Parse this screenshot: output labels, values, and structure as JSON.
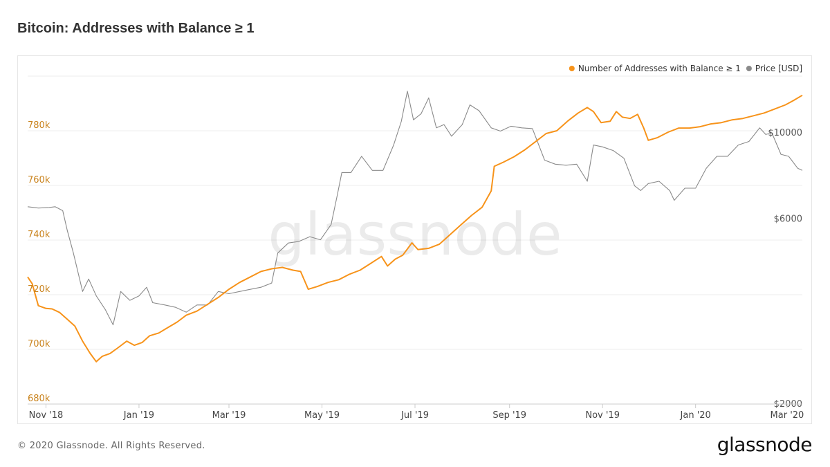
{
  "title": "Bitcoin: Addresses with Balance ≥ 1",
  "footer": {
    "copyright": "© 2020 Glassnode. All Rights Reserved.",
    "logo": "glassnode"
  },
  "watermark": "glassnode",
  "chart_data": {
    "type": "line",
    "title": "Bitcoin: Addresses with Balance ≥ 1",
    "legend_position": "top-right",
    "grid": true,
    "x_ticks": [
      "Nov '18",
      "Jan '19",
      "Mar '19",
      "May '19",
      "Jul '19",
      "Sep '19",
      "Nov '19",
      "Jan '20",
      "Mar '20"
    ],
    "x_tick_dates": [
      "2018-11-01",
      "2019-01-01",
      "2019-03-01",
      "2019-05-01",
      "2019-07-01",
      "2019-09-01",
      "2019-11-01",
      "2020-01-01",
      "2020-03-01"
    ],
    "xlim": [
      "2018-10-20",
      "2020-03-11"
    ],
    "y_left": {
      "ticks": [
        "680k",
        "700k",
        "720k",
        "740k",
        "760k",
        "780k"
      ],
      "tick_values": [
        680000,
        700000,
        720000,
        740000,
        760000,
        780000
      ],
      "range": [
        680000,
        800000
      ],
      "color": "#c9821b"
    },
    "y_right": {
      "ticks": [
        "$2000",
        "$6000",
        "$10000"
      ],
      "tick_values": [
        2000,
        6000,
        10000
      ],
      "range": [
        2000,
        14000
      ],
      "scale": "log",
      "color": "#555555"
    },
    "series": [
      {
        "name": "Number of Addresses with Balance ≥ 1",
        "axis": "left",
        "color": "#f7931a",
        "points": [
          [
            "2018-10-20",
            726500
          ],
          [
            "2018-10-23",
            724000
          ],
          [
            "2018-10-27",
            716000
          ],
          [
            "2018-11-01",
            715000
          ],
          [
            "2018-11-05",
            714800
          ],
          [
            "2018-11-10",
            713500
          ],
          [
            "2018-11-15",
            711000
          ],
          [
            "2018-11-20",
            708500
          ],
          [
            "2018-11-25",
            703000
          ],
          [
            "2018-11-30",
            698500
          ],
          [
            "2018-12-04",
            695500
          ],
          [
            "2018-12-08",
            697500
          ],
          [
            "2018-12-13",
            698500
          ],
          [
            "2018-12-18",
            700500
          ],
          [
            "2018-12-24",
            703000
          ],
          [
            "2018-12-29",
            701500
          ],
          [
            "2019-01-03",
            702500
          ],
          [
            "2019-01-08",
            705000
          ],
          [
            "2019-01-14",
            706000
          ],
          [
            "2019-01-20",
            708000
          ],
          [
            "2019-01-26",
            710000
          ],
          [
            "2019-02-01",
            712500
          ],
          [
            "2019-02-08",
            714000
          ],
          [
            "2019-02-15",
            716500
          ],
          [
            "2019-02-22",
            719000
          ],
          [
            "2019-03-01",
            722000
          ],
          [
            "2019-03-08",
            724500
          ],
          [
            "2019-03-15",
            726500
          ],
          [
            "2019-03-22",
            728500
          ],
          [
            "2019-03-29",
            729500
          ],
          [
            "2019-04-05",
            730000
          ],
          [
            "2019-04-12",
            729000
          ],
          [
            "2019-04-17",
            728500
          ],
          [
            "2019-04-22",
            722000
          ],
          [
            "2019-04-28",
            723000
          ],
          [
            "2019-05-05",
            724500
          ],
          [
            "2019-05-12",
            725500
          ],
          [
            "2019-05-19",
            727500
          ],
          [
            "2019-05-26",
            729000
          ],
          [
            "2019-06-02",
            731500
          ],
          [
            "2019-06-09",
            734000
          ],
          [
            "2019-06-13",
            730500
          ],
          [
            "2019-06-18",
            733000
          ],
          [
            "2019-06-23",
            734500
          ],
          [
            "2019-06-29",
            739000
          ],
          [
            "2019-07-03",
            736500
          ],
          [
            "2019-07-10",
            737000
          ],
          [
            "2019-07-17",
            738500
          ],
          [
            "2019-07-24",
            742000
          ],
          [
            "2019-07-31",
            745500
          ],
          [
            "2019-08-07",
            749000
          ],
          [
            "2019-08-14",
            752000
          ],
          [
            "2019-08-20",
            758000
          ],
          [
            "2019-08-22",
            767000
          ],
          [
            "2019-08-28",
            768500
          ],
          [
            "2019-09-04",
            770500
          ],
          [
            "2019-09-11",
            773000
          ],
          [
            "2019-09-18",
            776000
          ],
          [
            "2019-09-25",
            779000
          ],
          [
            "2019-10-02",
            780000
          ],
          [
            "2019-10-09",
            783500
          ],
          [
            "2019-10-16",
            786500
          ],
          [
            "2019-10-22",
            788500
          ],
          [
            "2019-10-26",
            787000
          ],
          [
            "2019-10-31",
            783000
          ],
          [
            "2019-11-06",
            783500
          ],
          [
            "2019-11-10",
            787000
          ],
          [
            "2019-11-14",
            785000
          ],
          [
            "2019-11-19",
            784500
          ],
          [
            "2019-11-24",
            786000
          ],
          [
            "2019-11-28",
            781000
          ],
          [
            "2019-12-01",
            776500
          ],
          [
            "2019-12-07",
            777500
          ],
          [
            "2019-12-14",
            779500
          ],
          [
            "2019-12-21",
            781000
          ],
          [
            "2019-12-28",
            781000
          ],
          [
            "2020-01-04",
            781500
          ],
          [
            "2020-01-11",
            782500
          ],
          [
            "2020-01-18",
            783000
          ],
          [
            "2020-01-25",
            784000
          ],
          [
            "2020-02-01",
            784500
          ],
          [
            "2020-02-08",
            785500
          ],
          [
            "2020-02-15",
            786500
          ],
          [
            "2020-02-22",
            788000
          ],
          [
            "2020-02-29",
            789500
          ],
          [
            "2020-03-05",
            791000
          ],
          [
            "2020-03-11",
            793000
          ]
        ]
      },
      {
        "name": "Price [USD]",
        "axis": "right",
        "color": "#8a8a8a",
        "points": [
          [
            "2018-10-20",
            6450
          ],
          [
            "2018-10-27",
            6400
          ],
          [
            "2018-11-03",
            6420
          ],
          [
            "2018-11-07",
            6450
          ],
          [
            "2018-11-12",
            6300
          ],
          [
            "2018-11-15",
            5600
          ],
          [
            "2018-11-19",
            4900
          ],
          [
            "2018-11-25",
            3900
          ],
          [
            "2018-11-29",
            4200
          ],
          [
            "2018-12-04",
            3800
          ],
          [
            "2018-12-10",
            3500
          ],
          [
            "2018-12-15",
            3200
          ],
          [
            "2018-12-20",
            3900
          ],
          [
            "2018-12-26",
            3700
          ],
          [
            "2019-01-01",
            3800
          ],
          [
            "2019-01-06",
            4000
          ],
          [
            "2019-01-10",
            3650
          ],
          [
            "2019-01-18",
            3600
          ],
          [
            "2019-01-25",
            3550
          ],
          [
            "2019-02-01",
            3450
          ],
          [
            "2019-02-08",
            3600
          ],
          [
            "2019-02-15",
            3600
          ],
          [
            "2019-02-22",
            3900
          ],
          [
            "2019-03-01",
            3850
          ],
          [
            "2019-03-08",
            3900
          ],
          [
            "2019-03-15",
            3950
          ],
          [
            "2019-03-22",
            4000
          ],
          [
            "2019-03-29",
            4100
          ],
          [
            "2019-04-02",
            4900
          ],
          [
            "2019-04-09",
            5200
          ],
          [
            "2019-04-16",
            5250
          ],
          [
            "2019-04-23",
            5400
          ],
          [
            "2019-04-30",
            5300
          ],
          [
            "2019-05-07",
            5800
          ],
          [
            "2019-05-11",
            6900
          ],
          [
            "2019-05-14",
            7900
          ],
          [
            "2019-05-20",
            7900
          ],
          [
            "2019-05-27",
            8700
          ],
          [
            "2019-06-03",
            8000
          ],
          [
            "2019-06-10",
            8000
          ],
          [
            "2019-06-17",
            9300
          ],
          [
            "2019-06-22",
            10700
          ],
          [
            "2019-06-26",
            12800
          ],
          [
            "2019-06-30",
            10800
          ],
          [
            "2019-07-05",
            11200
          ],
          [
            "2019-07-10",
            12300
          ],
          [
            "2019-07-15",
            10300
          ],
          [
            "2019-07-20",
            10500
          ],
          [
            "2019-07-25",
            9800
          ],
          [
            "2019-08-01",
            10500
          ],
          [
            "2019-08-06",
            11800
          ],
          [
            "2019-08-12",
            11400
          ],
          [
            "2019-08-20",
            10300
          ],
          [
            "2019-08-26",
            10100
          ],
          [
            "2019-09-02",
            10400
          ],
          [
            "2019-09-09",
            10300
          ],
          [
            "2019-09-16",
            10250
          ],
          [
            "2019-09-24",
            8500
          ],
          [
            "2019-10-01",
            8300
          ],
          [
            "2019-10-08",
            8250
          ],
          [
            "2019-10-15",
            8300
          ],
          [
            "2019-10-22",
            7500
          ],
          [
            "2019-10-26",
            9300
          ],
          [
            "2019-11-01",
            9200
          ],
          [
            "2019-11-08",
            9000
          ],
          [
            "2019-11-15",
            8600
          ],
          [
            "2019-11-22",
            7300
          ],
          [
            "2019-11-26",
            7100
          ],
          [
            "2019-12-01",
            7400
          ],
          [
            "2019-12-08",
            7500
          ],
          [
            "2019-12-15",
            7100
          ],
          [
            "2019-12-18",
            6700
          ],
          [
            "2019-12-25",
            7200
          ],
          [
            "2020-01-01",
            7200
          ],
          [
            "2020-01-08",
            8100
          ],
          [
            "2020-01-15",
            8700
          ],
          [
            "2020-01-22",
            8700
          ],
          [
            "2020-01-29",
            9300
          ],
          [
            "2020-02-05",
            9500
          ],
          [
            "2020-02-12",
            10300
          ],
          [
            "2020-02-16",
            9900
          ],
          [
            "2020-02-20",
            10000
          ],
          [
            "2020-02-26",
            8800
          ],
          [
            "2020-03-02",
            8700
          ],
          [
            "2020-03-08",
            8100
          ],
          [
            "2020-03-11",
            8000
          ]
        ]
      }
    ]
  }
}
